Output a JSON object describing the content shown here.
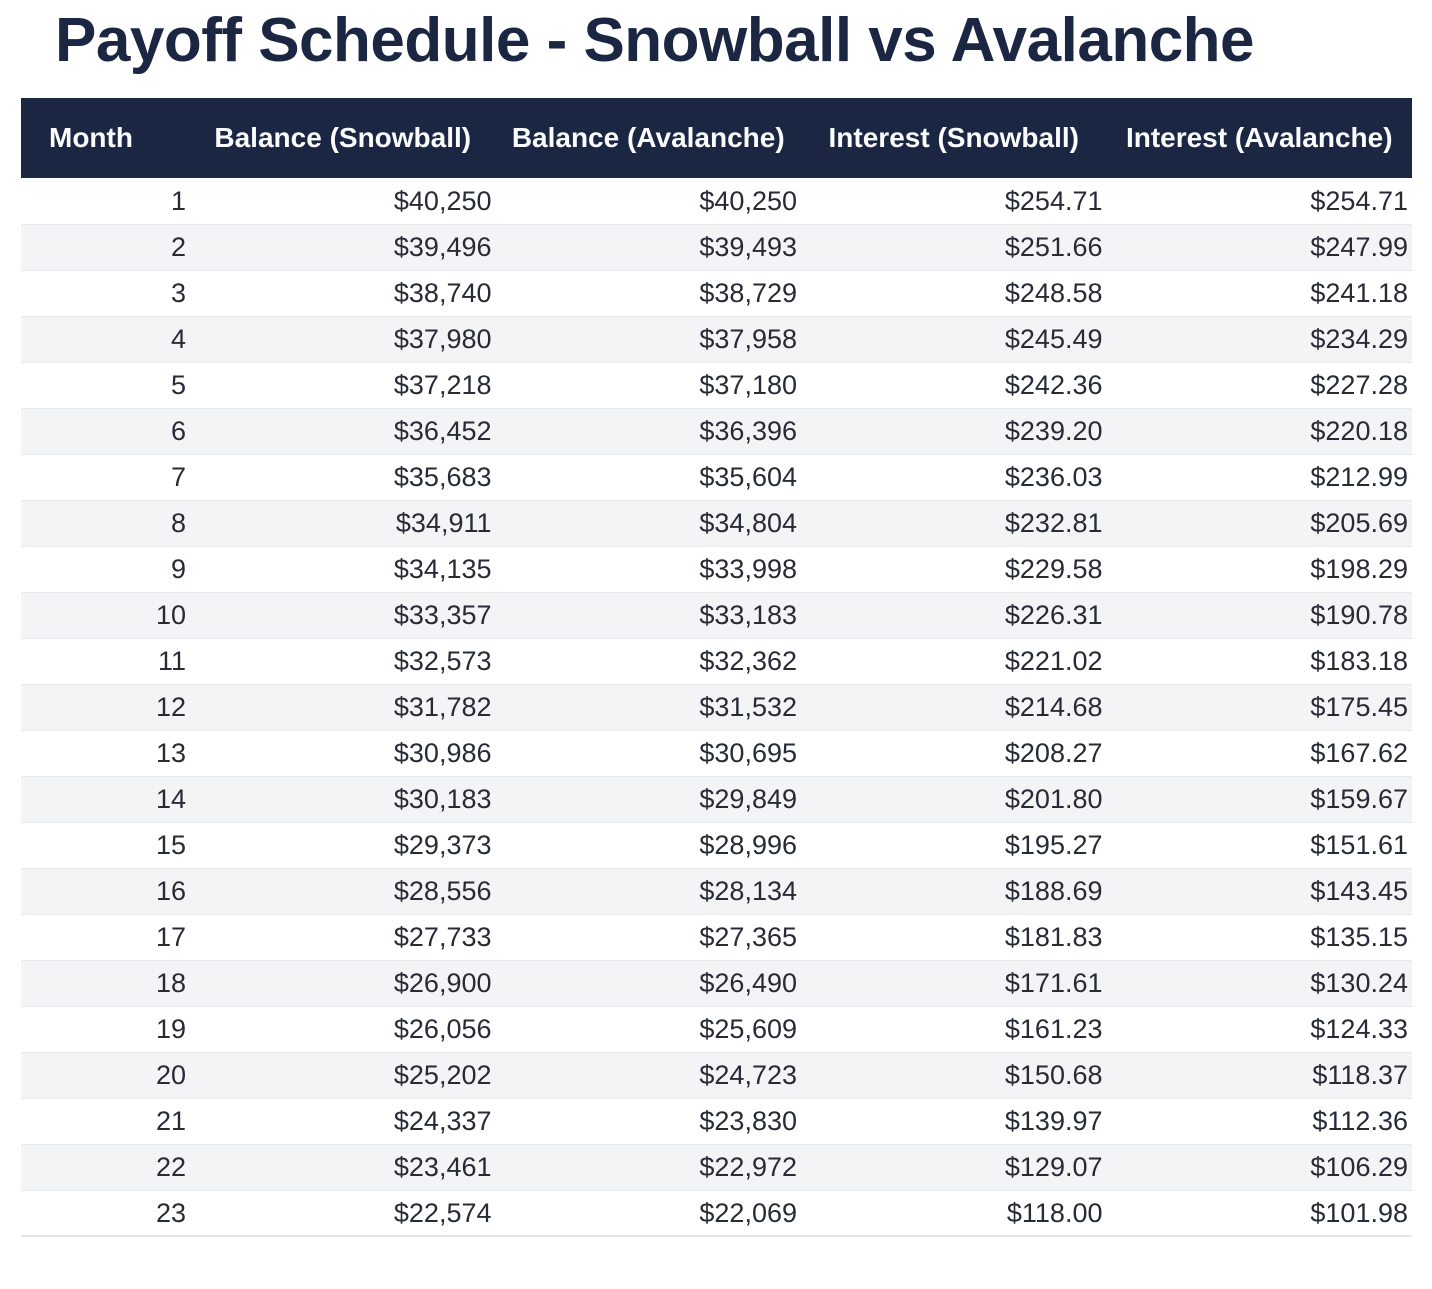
{
  "page": {
    "title": "Payoff Schedule - Snowball vs Avalanche"
  },
  "colors": {
    "title_and_header_bg": "#1b2642",
    "header_text": "#fafbfc",
    "body_text": "#262b36",
    "row_stripe": "#f3f4f6",
    "row_border": "#e7e9ec",
    "page_bg": "#ffffff"
  },
  "chart_data": {
    "type": "table",
    "title": "Payoff Schedule - Snowball vs Avalanche",
    "columns": [
      "Month",
      "Balance (Snowball)",
      "Balance (Avalanche)",
      "Interest (Snowball)",
      "Interest (Avalanche)"
    ],
    "rows": [
      [
        "1",
        "$40,250",
        "$40,250",
        "$254.71",
        "$254.71"
      ],
      [
        "2",
        "$39,496",
        "$39,493",
        "$251.66",
        "$247.99"
      ],
      [
        "3",
        "$38,740",
        "$38,729",
        "$248.58",
        "$241.18"
      ],
      [
        "4",
        "$37,980",
        "$37,958",
        "$245.49",
        "$234.29"
      ],
      [
        "5",
        "$37,218",
        "$37,180",
        "$242.36",
        "$227.28"
      ],
      [
        "6",
        "$36,452",
        "$36,396",
        "$239.20",
        "$220.18"
      ],
      [
        "7",
        "$35,683",
        "$35,604",
        "$236.03",
        "$212.99"
      ],
      [
        "8",
        "$34,911",
        "$34,804",
        "$232.81",
        "$205.69"
      ],
      [
        "9",
        "$34,135",
        "$33,998",
        "$229.58",
        "$198.29"
      ],
      [
        "10",
        "$33,357",
        "$33,183",
        "$226.31",
        "$190.78"
      ],
      [
        "11",
        "$32,573",
        "$32,362",
        "$221.02",
        "$183.18"
      ],
      [
        "12",
        "$31,782",
        "$31,532",
        "$214.68",
        "$175.45"
      ],
      [
        "13",
        "$30,986",
        "$30,695",
        "$208.27",
        "$167.62"
      ],
      [
        "14",
        "$30,183",
        "$29,849",
        "$201.80",
        "$159.67"
      ],
      [
        "15",
        "$29,373",
        "$28,996",
        "$195.27",
        "$151.61"
      ],
      [
        "16",
        "$28,556",
        "$28,134",
        "$188.69",
        "$143.45"
      ],
      [
        "17",
        "$27,733",
        "$27,365",
        "$181.83",
        "$135.15"
      ],
      [
        "18",
        "$26,900",
        "$26,490",
        "$171.61",
        "$130.24"
      ],
      [
        "19",
        "$26,056",
        "$25,609",
        "$161.23",
        "$124.33"
      ],
      [
        "20",
        "$25,202",
        "$24,723",
        "$150.68",
        "$118.37"
      ],
      [
        "21",
        "$24,337",
        "$23,830",
        "$139.97",
        "$112.36"
      ],
      [
        "22",
        "$23,461",
        "$22,972",
        "$129.07",
        "$106.29"
      ],
      [
        "23",
        "$22,574",
        "$22,069",
        "$118.00",
        "$101.98"
      ]
    ]
  }
}
